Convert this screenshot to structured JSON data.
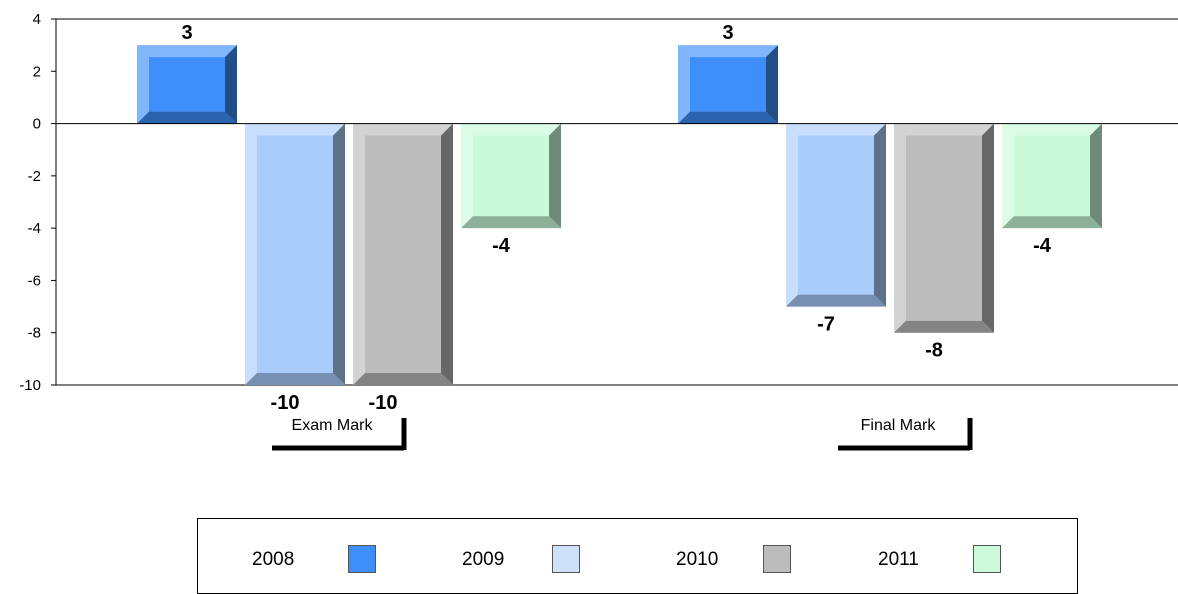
{
  "chart_data": {
    "type": "bar",
    "categories": [
      "Exam Mark",
      "Final Mark"
    ],
    "series": [
      {
        "name": "2008",
        "values": [
          3,
          3
        ],
        "color": "#3d8ef8"
      },
      {
        "name": "2009",
        "values": [
          -10,
          -7
        ],
        "color": "#aaccfb"
      },
      {
        "name": "2010",
        "values": [
          -10,
          -8
        ],
        "color": "#bcbcbc"
      },
      {
        "name": "2011",
        "values": [
          -4,
          -4
        ],
        "color": "#c9fbdb"
      }
    ],
    "data_labels": [
      [
        "3",
        "-10",
        "-10",
        "-4"
      ],
      [
        "3",
        "-7",
        "-8",
        "-4"
      ]
    ],
    "y_ticks": [
      "4",
      "2",
      "0",
      "-2",
      "-4",
      "-6",
      "-8",
      "-10"
    ],
    "ylim": [
      -10,
      4
    ],
    "legend_position": "bottom",
    "grid": false
  },
  "legend": {
    "items": [
      {
        "label": "2008",
        "color": "#3d8ef8"
      },
      {
        "label": "2009",
        "color": "#cfe0fb"
      },
      {
        "label": "2010",
        "color": "#bcbcbc"
      },
      {
        "label": "2011",
        "color": "#ccfbdc"
      }
    ]
  }
}
